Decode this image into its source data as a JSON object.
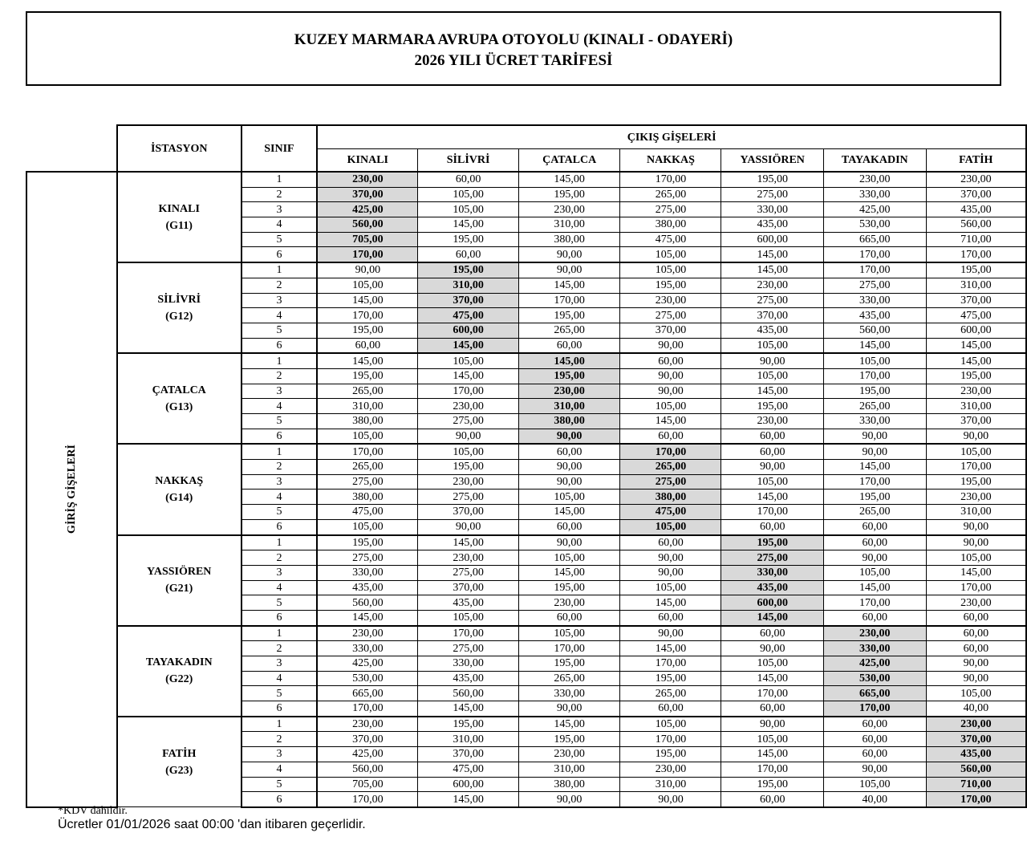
{
  "title": {
    "line1": "KUZEY MARMARA AVRUPA OTOYOLU (KINALI - ODAYERİ)",
    "line2": "2026 YILI ÜCRET TARİFESİ"
  },
  "table": {
    "station_header": "İSTASYON",
    "class_header": "SINIF",
    "exit_header": "ÇIKIŞ GİŞELERİ",
    "entry_header": "GİRİŞ GİŞELERİ",
    "exit_columns": [
      "KINALI",
      "SİLİVRİ",
      "ÇATALCA",
      "NAKKAŞ",
      "YASSIÖREN",
      "TAYAKADIN",
      "FATİH"
    ],
    "stations": [
      {
        "name": "KINALI",
        "code": "(G11)",
        "rows": [
          [
            "1",
            "230,00",
            "60,00",
            "145,00",
            "170,00",
            "195,00",
            "230,00",
            "230,00"
          ],
          [
            "2",
            "370,00",
            "105,00",
            "195,00",
            "265,00",
            "275,00",
            "330,00",
            "370,00"
          ],
          [
            "3",
            "425,00",
            "105,00",
            "230,00",
            "275,00",
            "330,00",
            "425,00",
            "435,00"
          ],
          [
            "4",
            "560,00",
            "145,00",
            "310,00",
            "380,00",
            "435,00",
            "530,00",
            "560,00"
          ],
          [
            "5",
            "705,00",
            "195,00",
            "380,00",
            "475,00",
            "600,00",
            "665,00",
            "710,00"
          ],
          [
            "6",
            "170,00",
            "60,00",
            "90,00",
            "105,00",
            "145,00",
            "170,00",
            "170,00"
          ]
        ]
      },
      {
        "name": "SİLİVRİ",
        "code": "(G12)",
        "rows": [
          [
            "1",
            "90,00",
            "195,00",
            "90,00",
            "105,00",
            "145,00",
            "170,00",
            "195,00"
          ],
          [
            "2",
            "105,00",
            "310,00",
            "145,00",
            "195,00",
            "230,00",
            "275,00",
            "310,00"
          ],
          [
            "3",
            "145,00",
            "370,00",
            "170,00",
            "230,00",
            "275,00",
            "330,00",
            "370,00"
          ],
          [
            "4",
            "170,00",
            "475,00",
            "195,00",
            "275,00",
            "370,00",
            "435,00",
            "475,00"
          ],
          [
            "5",
            "195,00",
            "600,00",
            "265,00",
            "370,00",
            "435,00",
            "560,00",
            "600,00"
          ],
          [
            "6",
            "60,00",
            "145,00",
            "60,00",
            "90,00",
            "105,00",
            "145,00",
            "145,00"
          ]
        ]
      },
      {
        "name": "ÇATALCA",
        "code": "(G13)",
        "rows": [
          [
            "1",
            "145,00",
            "105,00",
            "145,00",
            "60,00",
            "90,00",
            "105,00",
            "145,00"
          ],
          [
            "2",
            "195,00",
            "145,00",
            "195,00",
            "90,00",
            "105,00",
            "170,00",
            "195,00"
          ],
          [
            "3",
            "265,00",
            "170,00",
            "230,00",
            "90,00",
            "145,00",
            "195,00",
            "230,00"
          ],
          [
            "4",
            "310,00",
            "230,00",
            "310,00",
            "105,00",
            "195,00",
            "265,00",
            "310,00"
          ],
          [
            "5",
            "380,00",
            "275,00",
            "380,00",
            "145,00",
            "230,00",
            "330,00",
            "370,00"
          ],
          [
            "6",
            "105,00",
            "90,00",
            "90,00",
            "60,00",
            "60,00",
            "90,00",
            "90,00"
          ]
        ]
      },
      {
        "name": "NAKKAŞ",
        "code": "(G14)",
        "rows": [
          [
            "1",
            "170,00",
            "105,00",
            "60,00",
            "170,00",
            "60,00",
            "90,00",
            "105,00"
          ],
          [
            "2",
            "265,00",
            "195,00",
            "90,00",
            "265,00",
            "90,00",
            "145,00",
            "170,00"
          ],
          [
            "3",
            "275,00",
            "230,00",
            "90,00",
            "275,00",
            "105,00",
            "170,00",
            "195,00"
          ],
          [
            "4",
            "380,00",
            "275,00",
            "105,00",
            "380,00",
            "145,00",
            "195,00",
            "230,00"
          ],
          [
            "5",
            "475,00",
            "370,00",
            "145,00",
            "475,00",
            "170,00",
            "265,00",
            "310,00"
          ],
          [
            "6",
            "105,00",
            "90,00",
            "60,00",
            "105,00",
            "60,00",
            "60,00",
            "90,00"
          ]
        ]
      },
      {
        "name": "YASSIÖREN",
        "code": "(G21)",
        "rows": [
          [
            "1",
            "195,00",
            "145,00",
            "90,00",
            "60,00",
            "195,00",
            "60,00",
            "90,00"
          ],
          [
            "2",
            "275,00",
            "230,00",
            "105,00",
            "90,00",
            "275,00",
            "90,00",
            "105,00"
          ],
          [
            "3",
            "330,00",
            "275,00",
            "145,00",
            "90,00",
            "330,00",
            "105,00",
            "145,00"
          ],
          [
            "4",
            "435,00",
            "370,00",
            "195,00",
            "105,00",
            "435,00",
            "145,00",
            "170,00"
          ],
          [
            "5",
            "560,00",
            "435,00",
            "230,00",
            "145,00",
            "600,00",
            "170,00",
            "230,00"
          ],
          [
            "6",
            "145,00",
            "105,00",
            "60,00",
            "60,00",
            "145,00",
            "60,00",
            "60,00"
          ]
        ]
      },
      {
        "name": "TAYAKADIN",
        "code": "(G22)",
        "rows": [
          [
            "1",
            "230,00",
            "170,00",
            "105,00",
            "90,00",
            "60,00",
            "230,00",
            "60,00"
          ],
          [
            "2",
            "330,00",
            "275,00",
            "170,00",
            "145,00",
            "90,00",
            "330,00",
            "60,00"
          ],
          [
            "3",
            "425,00",
            "330,00",
            "195,00",
            "170,00",
            "105,00",
            "425,00",
            "90,00"
          ],
          [
            "4",
            "530,00",
            "435,00",
            "265,00",
            "195,00",
            "145,00",
            "530,00",
            "90,00"
          ],
          [
            "5",
            "665,00",
            "560,00",
            "330,00",
            "265,00",
            "170,00",
            "665,00",
            "105,00"
          ],
          [
            "6",
            "170,00",
            "145,00",
            "90,00",
            "60,00",
            "60,00",
            "170,00",
            "40,00"
          ]
        ]
      },
      {
        "name": "FATİH",
        "code": "(G23)",
        "rows": [
          [
            "1",
            "230,00",
            "195,00",
            "145,00",
            "105,00",
            "90,00",
            "60,00",
            "230,00"
          ],
          [
            "2",
            "370,00",
            "310,00",
            "195,00",
            "170,00",
            "105,00",
            "60,00",
            "370,00"
          ],
          [
            "3",
            "425,00",
            "370,00",
            "230,00",
            "195,00",
            "145,00",
            "60,00",
            "435,00"
          ],
          [
            "4",
            "560,00",
            "475,00",
            "310,00",
            "230,00",
            "170,00",
            "90,00",
            "560,00"
          ],
          [
            "5",
            "705,00",
            "600,00",
            "380,00",
            "310,00",
            "195,00",
            "105,00",
            "710,00"
          ],
          [
            "6",
            "170,00",
            "145,00",
            "90,00",
            "90,00",
            "60,00",
            "40,00",
            "170,00"
          ]
        ]
      }
    ]
  },
  "colors": {
    "highlight": "#d9d9d9"
  },
  "footer": {
    "note1": "*KDV dahildir.",
    "note2": "Ücretler 01/01/2026 saat 00:00 'dan itibaren geçerlidir."
  }
}
